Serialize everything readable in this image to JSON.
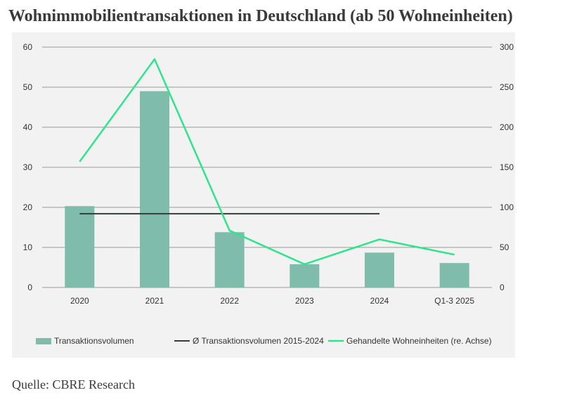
{
  "title": "Wohnimmobilientransaktionen in Deutschland (ab 50 Wohneinheiten)",
  "source": "Quelle: CBRE Research",
  "colors": {
    "bar": "#7fbcab",
    "avg_line": "#333d3a",
    "units_line": "#2ee58f",
    "grid": "#9a9a9a"
  },
  "chart_data": {
    "type": "bar",
    "categories": [
      "2020",
      "2021",
      "2022",
      "2023",
      "2024",
      "Q1-3 2025"
    ],
    "y_left": {
      "min": 0,
      "max": 60,
      "ticks": [
        "0",
        "10",
        "20",
        "30",
        "40",
        "50",
        "60"
      ]
    },
    "y_right": {
      "min": 0,
      "max": 300,
      "ticks": [
        "0",
        "50",
        "100",
        "150",
        "200",
        "250",
        "300"
      ]
    },
    "grid": true,
    "legend_position": "bottom",
    "series": [
      {
        "name": "Transaktionsvolumen",
        "type": "bar",
        "axis": "left",
        "values": [
          20.3,
          49,
          13.8,
          5.8,
          8.7,
          6.1
        ]
      },
      {
        "name": "Ø Transaktionsvolumen 2015-2024",
        "type": "line",
        "axis": "left",
        "values": [
          18.4,
          18.4,
          18.4,
          18.4,
          18.4,
          null
        ]
      },
      {
        "name": "Gehandelte Wohneinheiten (re. Achse)",
        "type": "line",
        "axis": "right",
        "values": [
          157,
          285,
          71,
          29,
          60,
          41
        ]
      }
    ]
  }
}
